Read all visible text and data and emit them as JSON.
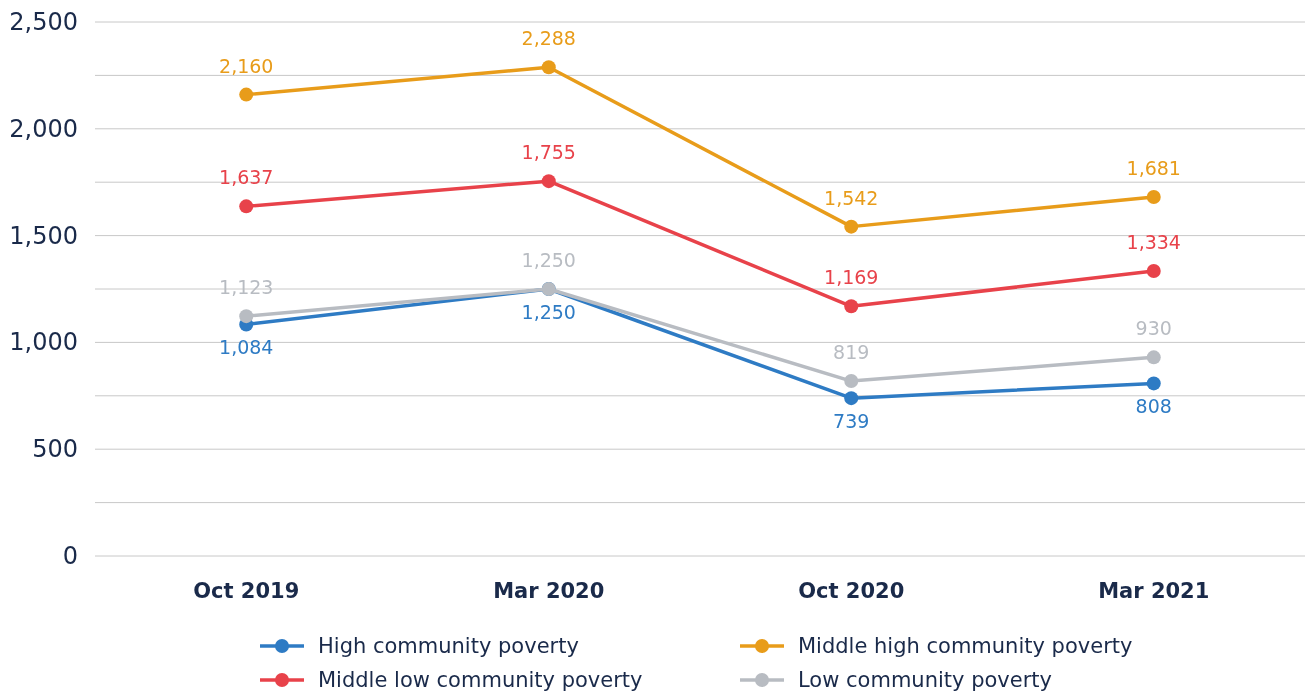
{
  "chart_data": {
    "type": "line",
    "categories": [
      "Oct 2019",
      "Mar 2020",
      "Oct 2020",
      "Mar 2021"
    ],
    "series": [
      {
        "name": "High community poverty",
        "color": "#2e7bc4",
        "values": [
          1084,
          1250,
          739,
          808
        ],
        "value_labels": [
          "1,084",
          "1,250",
          "739",
          "808"
        ]
      },
      {
        "name": "Middle high community poverty",
        "color": "#e89c1a",
        "values": [
          2160,
          2288,
          1542,
          1681
        ],
        "value_labels": [
          "2,160",
          "2,288",
          "1,542",
          "1,681"
        ]
      },
      {
        "name": "Middle low community poverty",
        "color": "#e8424a",
        "values": [
          1637,
          1755,
          1169,
          1334
        ],
        "value_labels": [
          "1,637",
          "1,755",
          "1,169",
          "1,334"
        ]
      },
      {
        "name": "Low community poverty",
        "color": "#b8bcc2",
        "values": [
          1123,
          1250,
          819,
          930
        ],
        "value_labels": [
          "1,123",
          "1,250",
          "819",
          "930"
        ]
      }
    ],
    "ylim": [
      0,
      2500
    ],
    "yticks": [
      {
        "value": 0,
        "label": "0"
      },
      {
        "value": 250,
        "label": null
      },
      {
        "value": 500,
        "label": "500"
      },
      {
        "value": 750,
        "label": null
      },
      {
        "value": 1000,
        "label": "1,000"
      },
      {
        "value": 1250,
        "label": null
      },
      {
        "value": 1500,
        "label": "1,500"
      },
      {
        "value": 1750,
        "label": null
      },
      {
        "value": 2000,
        "label": "2,000"
      },
      {
        "value": 2250,
        "label": null
      },
      {
        "value": 2500,
        "label": "2,500"
      }
    ],
    "grid": "y",
    "legend": "bottom",
    "marker": "circle",
    "line_style": "solid"
  }
}
